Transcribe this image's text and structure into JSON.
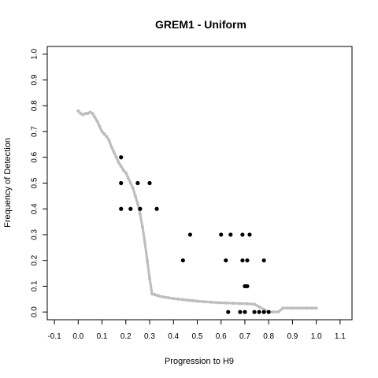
{
  "chart_data": {
    "type": "scatter",
    "title": "GREM1 - Uniform",
    "xlabel": "Progression to H9",
    "ylabel": "Frequency of Detection",
    "xlim": [
      -0.13,
      1.15
    ],
    "ylim": [
      -0.03,
      1.03
    ],
    "x_ticks": [
      "-0.1",
      "0.0",
      "0.1",
      "0.2",
      "0.3",
      "0.4",
      "0.5",
      "0.6",
      "0.7",
      "0.8",
      "0.9",
      "1.0",
      "1.1"
    ],
    "y_ticks": [
      "0.0",
      "0.1",
      "0.2",
      "0.3",
      "0.4",
      "0.5",
      "0.6",
      "0.7",
      "0.8",
      "0.9",
      "1.0"
    ],
    "grid": false,
    "colors": {
      "curve": "#bebebe",
      "observed": "#000000"
    },
    "series": [
      {
        "style": "gray-curve",
        "x": [
          0.0,
          0.01,
          0.02,
          0.03,
          0.04,
          0.05,
          0.06,
          0.07,
          0.08,
          0.09,
          0.1,
          0.11,
          0.12,
          0.13,
          0.14,
          0.15,
          0.16,
          0.17,
          0.18,
          0.19,
          0.2,
          0.21,
          0.22,
          0.23,
          0.24,
          0.25,
          0.26,
          0.27,
          0.28,
          0.29,
          0.3,
          0.31,
          0.32,
          0.33,
          0.34,
          0.36,
          0.38,
          0.4,
          0.42,
          0.44,
          0.46,
          0.48,
          0.5,
          0.53,
          0.56,
          0.59,
          0.62,
          0.65,
          0.68,
          0.71,
          0.74,
          0.76,
          0.78,
          0.8,
          0.82,
          0.84,
          0.86,
          0.88,
          0.9,
          0.92,
          0.94,
          0.96,
          0.98,
          1.0
        ],
        "y": [
          0.78,
          0.77,
          0.765,
          0.77,
          0.77,
          0.775,
          0.77,
          0.755,
          0.74,
          0.72,
          0.7,
          0.69,
          0.68,
          0.665,
          0.64,
          0.62,
          0.6,
          0.58,
          0.565,
          0.55,
          0.54,
          0.52,
          0.5,
          0.48,
          0.45,
          0.42,
          0.38,
          0.33,
          0.27,
          0.2,
          0.13,
          0.07,
          0.068,
          0.065,
          0.062,
          0.058,
          0.055,
          0.052,
          0.05,
          0.048,
          0.046,
          0.044,
          0.042,
          0.04,
          0.038,
          0.036,
          0.035,
          0.034,
          0.033,
          0.032,
          0.03,
          0.02,
          0.01,
          0.0,
          0.0,
          0.0,
          0.015,
          0.015,
          0.015,
          0.015,
          0.015,
          0.015,
          0.015,
          0.015
        ]
      },
      {
        "style": "black-points",
        "x": [
          0.18,
          0.18,
          0.18,
          0.22,
          0.25,
          0.26,
          0.3,
          0.33,
          0.44,
          0.47,
          0.6,
          0.62,
          0.64,
          0.63,
          0.68,
          0.69,
          0.69,
          0.7,
          0.7,
          0.71,
          0.71,
          0.72,
          0.74,
          0.76,
          0.78,
          0.78,
          0.8
        ],
        "y": [
          0.6,
          0.5,
          0.4,
          0.4,
          0.5,
          0.4,
          0.5,
          0.4,
          0.2,
          0.3,
          0.3,
          0.2,
          0.3,
          0.0,
          0.0,
          0.3,
          0.2,
          0.0,
          0.1,
          0.2,
          0.1,
          0.3,
          0.0,
          0.0,
          0.2,
          0.0,
          0.0
        ]
      }
    ]
  }
}
